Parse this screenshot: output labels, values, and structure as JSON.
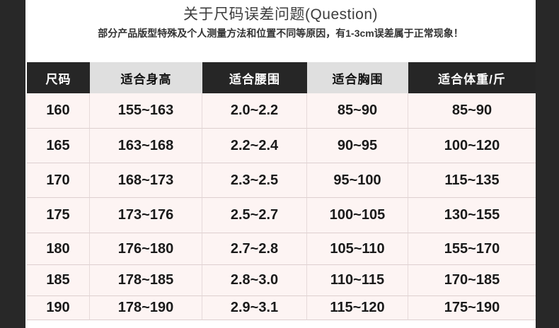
{
  "chart_data": {
    "type": "table",
    "title": "关于尺码误差问题(Question)",
    "subtitle": "部分产品版型特殊及个人测量方法和位置不同等原因，有1-3cm误差属于正常现象！",
    "columns": [
      "尺码",
      "适合身高",
      "适合腰围",
      "适合胸围",
      "适合体重/斤"
    ],
    "rows": [
      [
        "160",
        "155~163",
        "2.0~2.2",
        "85~90",
        "85~90"
      ],
      [
        "165",
        "163~168",
        "2.2~2.4",
        "90~95",
        "100~120"
      ],
      [
        "170",
        "168~173",
        "2.3~2.5",
        "95~100",
        "115~135"
      ],
      [
        "175",
        "173~176",
        "2.5~2.7",
        "100~105",
        "130~155"
      ],
      [
        "180",
        "176~180",
        "2.7~2.8",
        "105~110",
        "155~170"
      ],
      [
        "185",
        "178~185",
        "2.8~3.0",
        "110~115",
        "170~185"
      ],
      [
        "190",
        "178~190",
        "2.9~3.1",
        "115~120",
        "175~190"
      ]
    ],
    "layout": {
      "header_pattern": "alternating dark/light starting dark",
      "grid": true
    }
  },
  "colors": {
    "side_bar": "#282828",
    "header_dark_bg": "#262626",
    "header_dark_text": "#ffffff",
    "header_light_bg": "#dfdfdf",
    "header_light_text": "#111111",
    "cell_bg": "#fdf4f3",
    "grid_line": "#ddcfcf",
    "cell_text": "#1a1a1a",
    "title_text": "#3d3d3d"
  }
}
